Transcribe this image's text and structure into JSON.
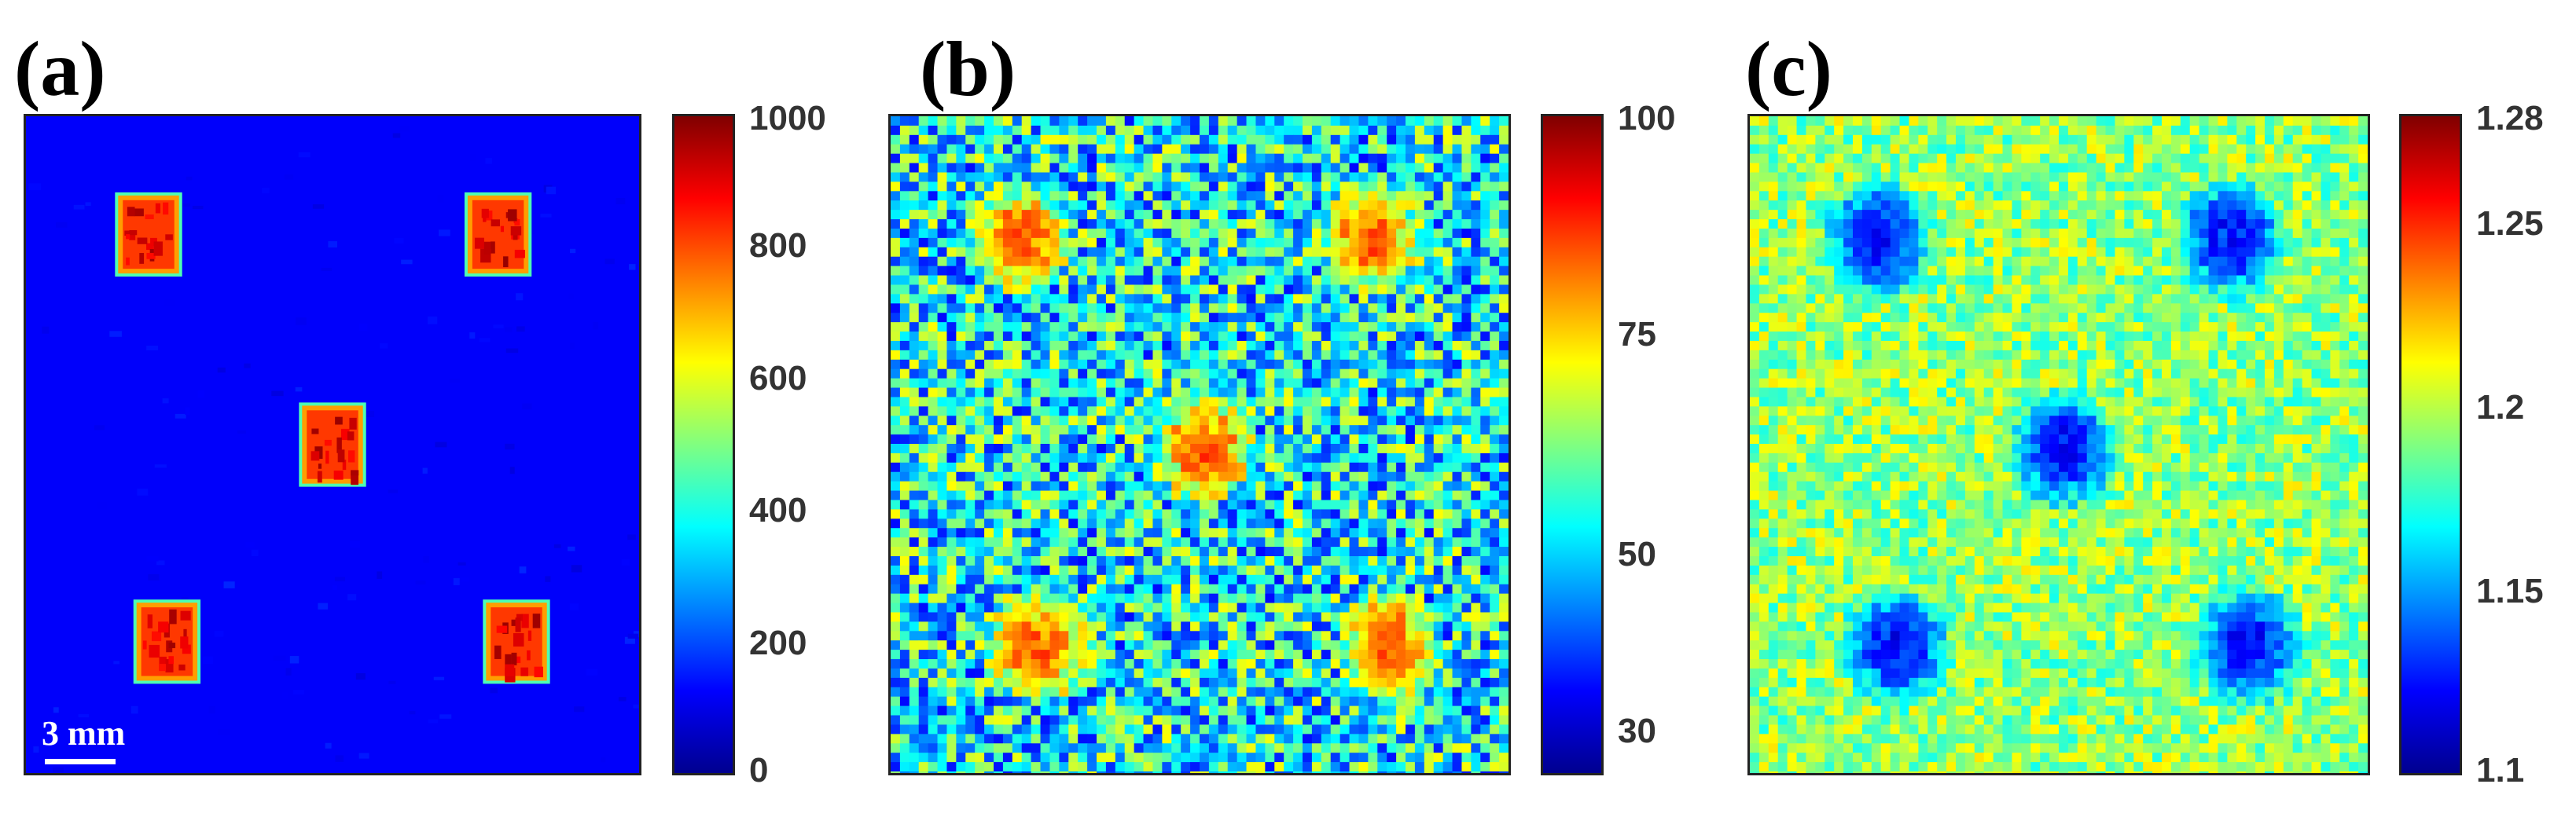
{
  "colormap": [
    "#00008f",
    "#0000ff",
    "#0080ff",
    "#00ffff",
    "#80ff80",
    "#ffff00",
    "#ff8000",
    "#ff0000",
    "#800000"
  ],
  "panels": [
    {
      "label": "(a)",
      "colorbar": {
        "ticks": [
          "1000",
          "800",
          "600",
          "400",
          "200",
          "0"
        ],
        "tick_values": [
          1000,
          800,
          600,
          400,
          200,
          0
        ],
        "range": [
          0,
          1000
        ]
      },
      "scale_bar": "3 mm"
    },
    {
      "label": "(b)",
      "colorbar": {
        "ticks": [
          "100",
          "75",
          "50",
          "30"
        ],
        "tick_values": [
          100,
          75,
          50,
          30
        ],
        "range": [
          25,
          100
        ]
      }
    },
    {
      "label": "(c)",
      "colorbar": {
        "ticks": [
          "1.28",
          "1.25",
          "1.2",
          "1.15",
          "1.1"
        ],
        "tick_values": [
          1.28,
          1.25,
          1.2,
          1.15,
          1.1
        ],
        "range": [
          1.1,
          1.28
        ]
      }
    }
  ]
}
